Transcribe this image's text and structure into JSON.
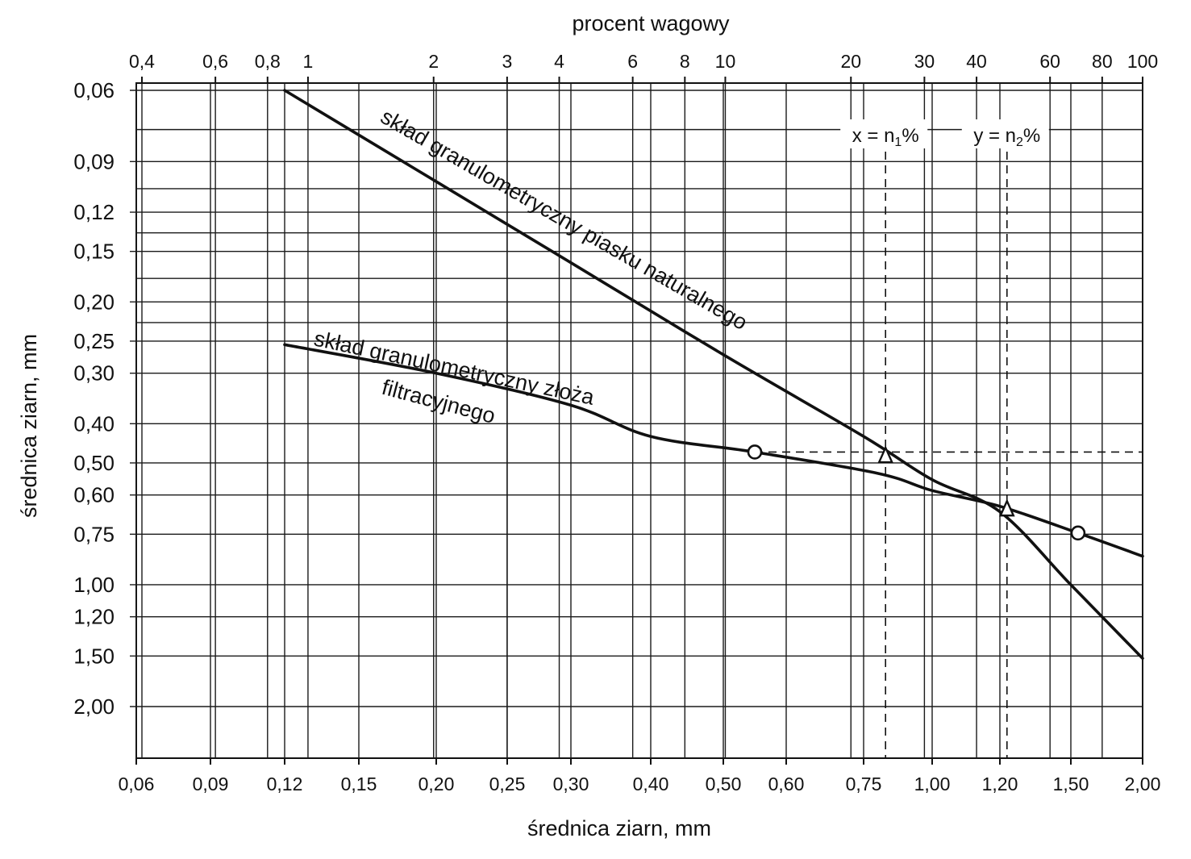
{
  "chart_data": {
    "type": "line",
    "title": "",
    "xlabel": "średnica ziarn, mm",
    "ylabel": "średnica ziarn, mm",
    "x2label": "procent wagowy",
    "x_ticks": [
      "0,06",
      "0,09",
      "0,12",
      "0,15",
      "0,20",
      "0,25",
      "0,30",
      "0,40",
      "0,50",
      "0,60",
      "0,75",
      "1,00",
      "1,20",
      "1,50",
      "2,00"
    ],
    "x_tick_values": [
      0.06,
      0.09,
      0.12,
      0.15,
      0.2,
      0.25,
      0.3,
      0.4,
      0.5,
      0.6,
      0.75,
      1.0,
      1.2,
      1.5,
      2.0
    ],
    "y_ticks": [
      "0,06",
      "0,09",
      "0,12",
      "0,15",
      "0,20",
      "0,25",
      "0,30",
      "0,40",
      "0,50",
      "0,60",
      "0,75",
      "1,00",
      "1,20",
      "1,50",
      "2,00"
    ],
    "y_tick_values": [
      0.06,
      0.09,
      0.12,
      0.15,
      0.2,
      0.25,
      0.3,
      0.4,
      0.5,
      0.6,
      0.75,
      1.0,
      1.2,
      1.5,
      2.0
    ],
    "top_ticks": [
      "0,4",
      "0,6",
      "0,8",
      "1",
      "2",
      "3",
      "4",
      "6",
      "8",
      "10",
      "20",
      "30",
      "40",
      "60",
      "80",
      "100"
    ],
    "top_tick_values": [
      0.4,
      0.6,
      0.8,
      1,
      2,
      3,
      4,
      6,
      8,
      10,
      20,
      30,
      40,
      60,
      80,
      100
    ],
    "xlim": [
      0.06,
      2.0
    ],
    "ylim": [
      0.06,
      2.0
    ],
    "grid": true,
    "series": [
      {
        "name": "skład granulometryczny piasku naturalnego",
        "x": [
          0.12,
          0.3,
          0.5,
          0.75,
          1.0,
          1.2,
          1.5,
          2.0
        ],
        "y": [
          0.06,
          0.16,
          0.27,
          0.43,
          0.55,
          0.66,
          1.0,
          1.52
        ]
      },
      {
        "name": "skład granulometryczny złoża filtracyjnego",
        "x": [
          0.12,
          0.2,
          0.3,
          0.4,
          0.55,
          0.8,
          1.0,
          1.2,
          1.55,
          2.0
        ],
        "y": [
          0.255,
          0.3,
          0.36,
          0.43,
          0.47,
          0.53,
          0.585,
          0.64,
          0.745,
          0.85
        ]
      }
    ],
    "reference_lines": {
      "horizontal": {
        "y": 0.47
      },
      "vertical": [
        {
          "x": 0.83,
          "label": "x = n",
          "sub": "1",
          "suffix": "%"
        },
        {
          "x": 1.23,
          "label": "y = n",
          "sub": "2",
          "suffix": "%"
        }
      ]
    },
    "markers": [
      {
        "shape": "circle",
        "x": 0.55,
        "y": 0.47
      },
      {
        "shape": "triangle",
        "x": 0.83,
        "y": 0.48
      },
      {
        "shape": "triangle",
        "x": 1.23,
        "y": 0.65
      },
      {
        "shape": "circle",
        "x": 1.55,
        "y": 0.745
      }
    ],
    "curve_labels": {
      "sand": "skład granulometryczny piasku naturalnego",
      "bed_line1": "skład granulometryczny złoża",
      "bed_line2": "filtracyjnego"
    }
  }
}
